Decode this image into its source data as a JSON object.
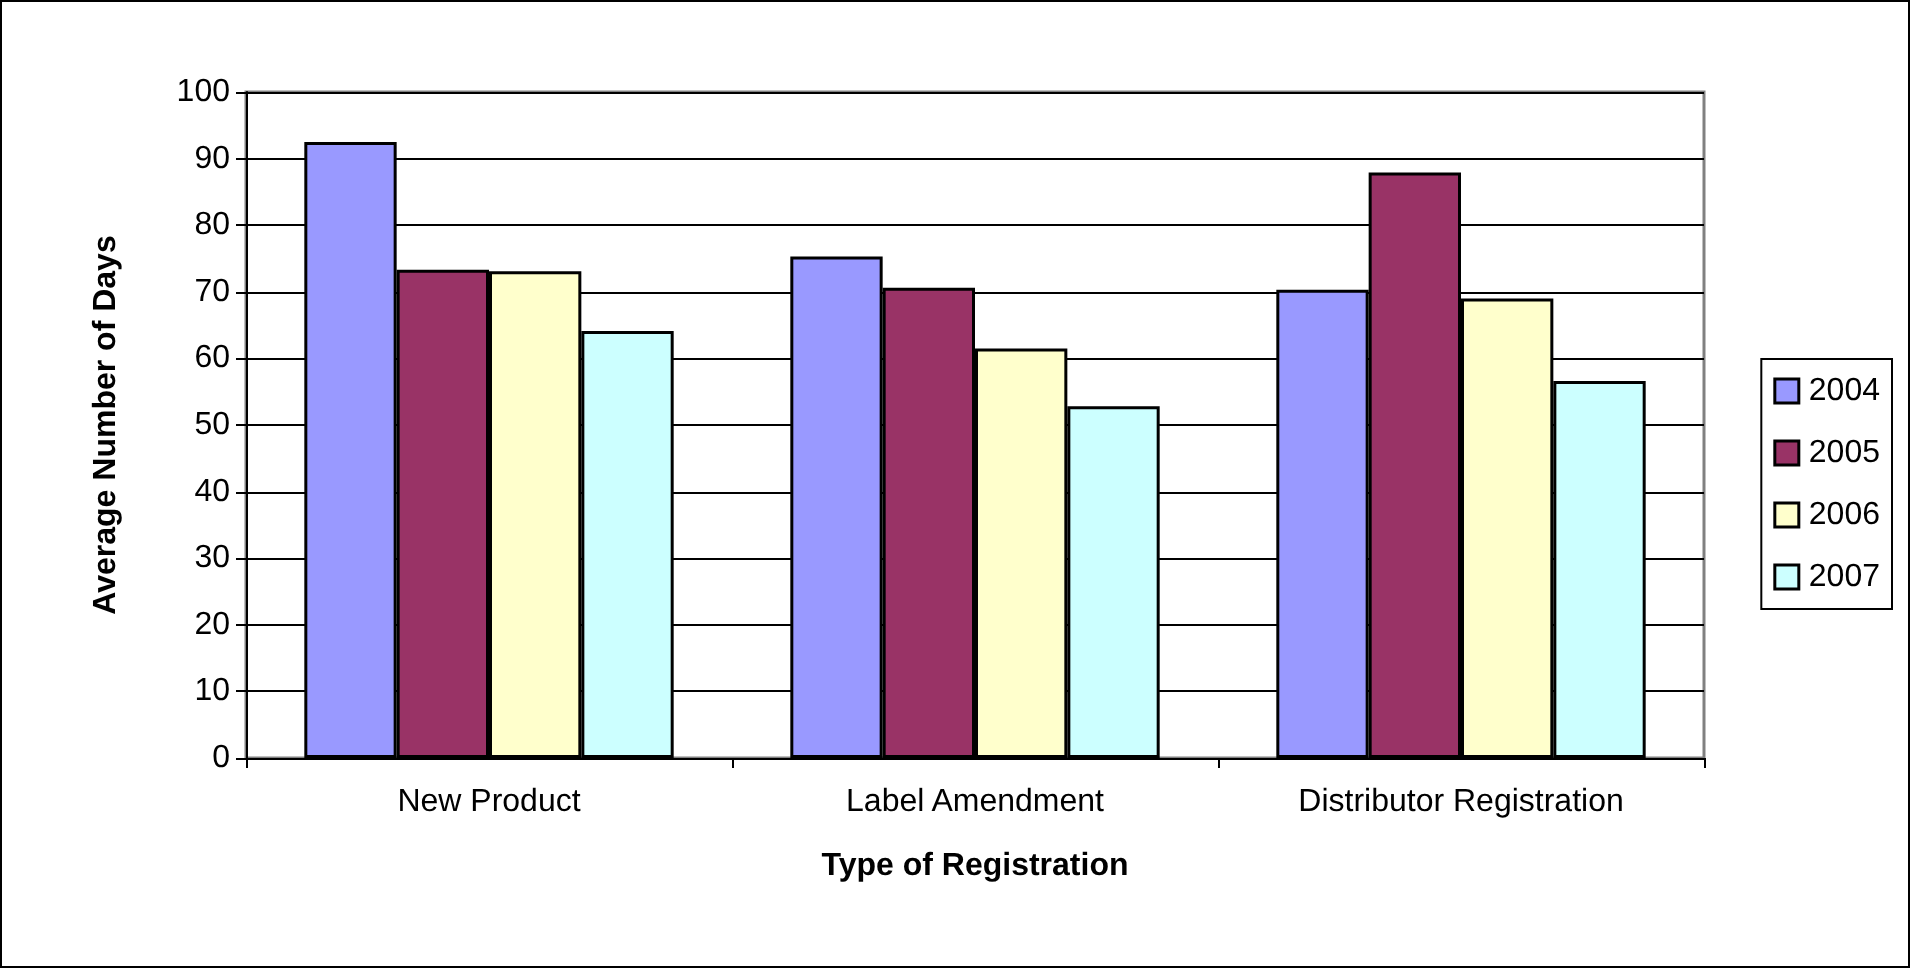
{
  "chart_data": {
    "type": "bar",
    "xlabel": "Type of Registration",
    "ylabel": "Average Number of Days",
    "categories": [
      "New Product",
      "Label Amendment",
      "Distributor Registration"
    ],
    "series": [
      {
        "name": "2004",
        "color": "#9999ff",
        "values": [
          92.5,
          75.3,
          70.3
        ]
      },
      {
        "name": "2005",
        "color": "#993366",
        "values": [
          73.3,
          70.6,
          87.9
        ]
      },
      {
        "name": "2006",
        "color": "#ffffcc",
        "values": [
          73.1,
          61.5,
          69
        ]
      },
      {
        "name": "2007",
        "color": "#ccffff",
        "values": [
          64.1,
          52.8,
          56.6
        ]
      }
    ],
    "ylim": [
      0,
      100
    ],
    "yticks": [
      0,
      10,
      20,
      30,
      40,
      50,
      60,
      70,
      80,
      90,
      100
    ],
    "grid": "y",
    "legend": "right"
  }
}
